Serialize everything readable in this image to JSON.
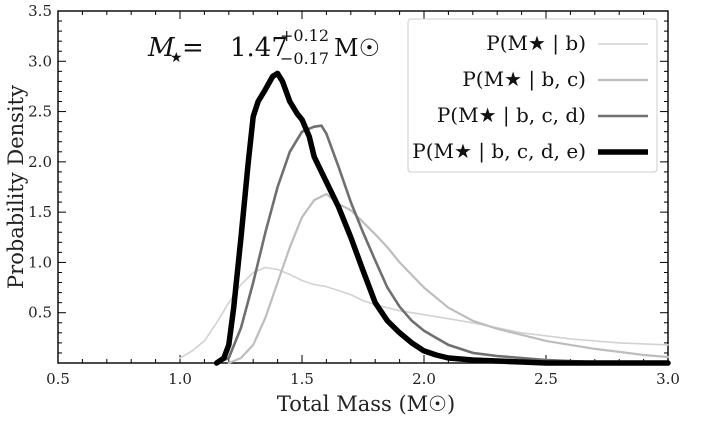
{
  "chart_data": {
    "type": "line",
    "title": "",
    "xlabel": "Total Mass (M☉)",
    "ylabel": "Probability Density",
    "xlim": [
      0.5,
      3.0
    ],
    "ylim": [
      0,
      3.5
    ],
    "x_ticks": [
      "0.5",
      "1.0",
      "1.5",
      "2.0",
      "2.5",
      "3.0"
    ],
    "y_ticks": [
      "0.5",
      "1.0",
      "1.5",
      "2.0",
      "2.5",
      "3.0",
      "3.5"
    ],
    "grid": false,
    "legend_position": "top-right",
    "annotation": {
      "lhs": "M",
      "lhs_sub": "★",
      "equals": " = ",
      "value": "1.47",
      "sup": "+0.12",
      "sub": "−0.17",
      "unit": "M☉"
    },
    "series": [
      {
        "name": "b",
        "label": "P(M★ | b)",
        "color": "#d2d2d2",
        "width": 1.6,
        "x": [
          1.0,
          1.05,
          1.1,
          1.15,
          1.2,
          1.25,
          1.3,
          1.35,
          1.4,
          1.45,
          1.5,
          1.55,
          1.6,
          1.65,
          1.7,
          1.75,
          1.8,
          1.85,
          1.9,
          2.0,
          2.1,
          2.2,
          2.3,
          2.4,
          2.5,
          2.6,
          2.7,
          2.8,
          2.9,
          3.0
        ],
        "values": [
          0.05,
          0.12,
          0.22,
          0.4,
          0.6,
          0.78,
          0.9,
          0.95,
          0.93,
          0.88,
          0.82,
          0.78,
          0.76,
          0.72,
          0.68,
          0.62,
          0.58,
          0.55,
          0.52,
          0.48,
          0.44,
          0.4,
          0.35,
          0.3,
          0.27,
          0.24,
          0.22,
          0.2,
          0.19,
          0.18
        ]
      },
      {
        "name": "b,c",
        "label": "P(M★ | b, c)",
        "color": "#bdbdbd",
        "width": 2.2,
        "x": [
          1.2,
          1.25,
          1.3,
          1.35,
          1.4,
          1.45,
          1.5,
          1.55,
          1.6,
          1.65,
          1.7,
          1.75,
          1.8,
          1.85,
          1.9,
          2.0,
          2.1,
          2.2,
          2.3,
          2.4,
          2.5,
          2.6,
          2.7,
          2.8,
          2.9,
          3.0
        ],
        "values": [
          0.0,
          0.05,
          0.18,
          0.45,
          0.8,
          1.15,
          1.45,
          1.62,
          1.68,
          1.58,
          1.52,
          1.4,
          1.28,
          1.15,
          1.0,
          0.75,
          0.55,
          0.42,
          0.34,
          0.28,
          0.22,
          0.18,
          0.14,
          0.11,
          0.08,
          0.06
        ]
      },
      {
        "name": "b,c,d",
        "label": "P(M★ | b, c, d)",
        "color": "#6f6f6f",
        "width": 2.6,
        "x": [
          1.15,
          1.2,
          1.25,
          1.3,
          1.35,
          1.4,
          1.45,
          1.5,
          1.55,
          1.58,
          1.6,
          1.65,
          1.7,
          1.75,
          1.8,
          1.85,
          1.9,
          1.95,
          2.0,
          2.05,
          2.1,
          2.2,
          2.3,
          2.4,
          2.5,
          2.6,
          2.7,
          2.8,
          2.9,
          3.0
        ],
        "values": [
          0.0,
          0.05,
          0.35,
          0.8,
          1.3,
          1.75,
          2.1,
          2.3,
          2.35,
          2.36,
          2.28,
          1.95,
          1.6,
          1.3,
          1.02,
          0.75,
          0.56,
          0.42,
          0.32,
          0.25,
          0.18,
          0.1,
          0.07,
          0.05,
          0.03,
          0.02,
          0.01,
          0.01,
          0.0,
          0.0
        ]
      },
      {
        "name": "b,c,d,e",
        "label": "P(M★ | b, c, d, e)",
        "color": "#000000",
        "width": 5.5,
        "x": [
          1.15,
          1.18,
          1.2,
          1.22,
          1.25,
          1.28,
          1.3,
          1.32,
          1.35,
          1.38,
          1.4,
          1.42,
          1.45,
          1.48,
          1.5,
          1.53,
          1.55,
          1.6,
          1.65,
          1.7,
          1.75,
          1.8,
          1.85,
          1.9,
          1.95,
          2.0,
          2.05,
          2.1,
          2.2,
          2.3,
          2.4,
          2.5,
          2.6,
          2.7,
          2.8,
          2.9,
          3.0
        ],
        "values": [
          0.0,
          0.05,
          0.18,
          0.55,
          1.25,
          2.0,
          2.45,
          2.6,
          2.72,
          2.85,
          2.88,
          2.8,
          2.6,
          2.48,
          2.42,
          2.25,
          2.05,
          1.8,
          1.55,
          1.25,
          0.92,
          0.6,
          0.42,
          0.3,
          0.2,
          0.12,
          0.08,
          0.05,
          0.03,
          0.02,
          0.01,
          0.0,
          0.0,
          0.0,
          0.0,
          0.0,
          0.0
        ]
      }
    ]
  }
}
